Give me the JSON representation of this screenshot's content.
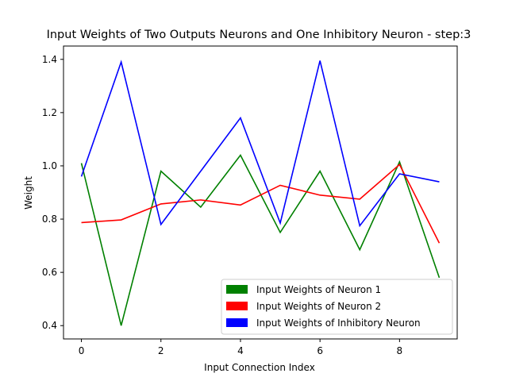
{
  "chart_data": {
    "type": "line",
    "title": "Input Weights of Two Outputs Neurons and One Inhibitory Neuron - step:3",
    "xlabel": "Input Connection Index",
    "ylabel": "Weight",
    "x": [
      0,
      1,
      2,
      3,
      4,
      5,
      6,
      7,
      8,
      9
    ],
    "xlim": [
      -0.45,
      9.45
    ],
    "ylim": [
      0.35,
      1.45
    ],
    "xticks": [
      "0",
      "2",
      "4",
      "6",
      "8"
    ],
    "xtick_values": [
      0,
      2,
      4,
      6,
      8
    ],
    "yticks": [
      "0.4",
      "0.6",
      "0.8",
      "1.0",
      "1.2",
      "1.4"
    ],
    "ytick_values": [
      0.4,
      0.6,
      0.8,
      1.0,
      1.2,
      1.4
    ],
    "grid": false,
    "legend_position": "lower-right",
    "series": [
      {
        "name": "Input Weights of Neuron 1",
        "color": "#008000",
        "values": [
          1.01,
          0.4,
          0.98,
          0.845,
          1.04,
          0.75,
          0.98,
          0.685,
          1.015,
          0.58
        ]
      },
      {
        "name": "Input Weights of Neuron 2",
        "color": "#ff0000",
        "values": [
          0.787,
          0.797,
          0.857,
          0.872,
          0.853,
          0.927,
          0.89,
          0.875,
          1.005,
          0.71
        ]
      },
      {
        "name": "Input Weights of Inhibitory Neuron",
        "color": "#0000ff",
        "values": [
          0.96,
          1.39,
          0.78,
          0.98,
          1.18,
          0.785,
          1.395,
          0.775,
          0.97,
          0.94
        ]
      }
    ]
  }
}
